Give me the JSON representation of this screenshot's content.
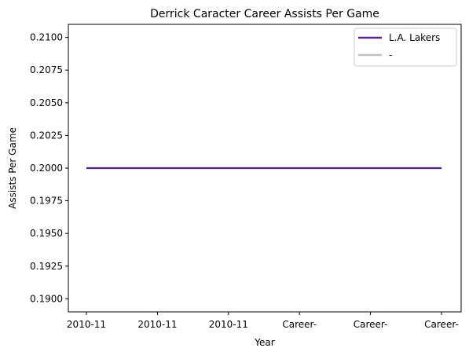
{
  "chart_data": {
    "type": "line",
    "title": "Derrick Caracter Career Assists Per Game",
    "xlabel": "Year",
    "ylabel": "Assists Per Game",
    "categories": [
      "2010-11",
      "2010-11",
      "2010-11",
      "Career-",
      "Career-",
      "Career-"
    ],
    "ylim": [
      0.189,
      0.211
    ],
    "yticks": [
      0.19,
      0.1925,
      0.195,
      0.1975,
      0.2,
      0.2025,
      0.205,
      0.2075,
      0.21
    ],
    "ytick_labels": [
      "0.1900",
      "0.1925",
      "0.1950",
      "0.1975",
      "0.2000",
      "0.2025",
      "0.2050",
      "0.2075",
      "0.2100"
    ],
    "series": [
      {
        "name": "L.A. Lakers",
        "color": "#552583",
        "values": [
          0.2,
          0.2,
          0.2,
          0.2,
          0.2,
          0.2
        ]
      },
      {
        "name": "-",
        "color": "#bfbfbf",
        "values": [
          0.2,
          0.2,
          0.2,
          0.2,
          0.2,
          0.2
        ]
      }
    ],
    "grid": false,
    "legend_position": "top-right"
  }
}
